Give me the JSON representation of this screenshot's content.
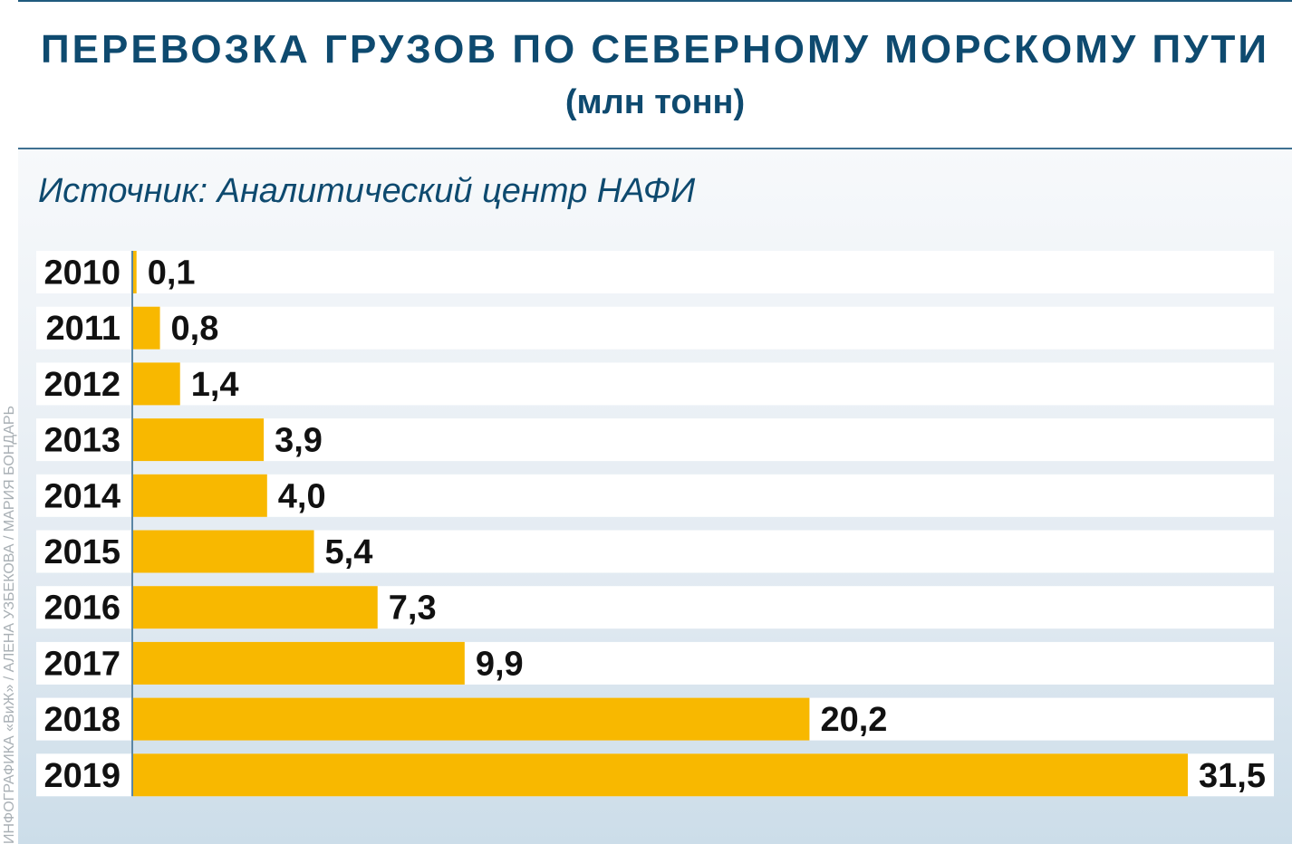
{
  "header": {
    "title": "ПЕРЕВОЗКА ГРУЗОВ ПО СЕВЕРНОМУ МОРСКОМУ ПУТИ",
    "subtitle": "(млн тонн)",
    "source": "Источник: Аналитический центр НАФИ"
  },
  "credit": "ИНФОГРАФИКА «ВиЖ» / АЛЕНА УЗБЕКОВА / МАРИЯ БОНДАРЬ",
  "colors": {
    "bar": "#f8b800",
    "title": "#0e4a6f",
    "axis": "#5a86a5"
  },
  "chart_data": {
    "type": "bar",
    "orientation": "horizontal",
    "title": "ПЕРЕВОЗКА ГРУЗОВ ПО СЕВЕРНОМУ МОРСКОМУ ПУТИ",
    "subtitle": "(млн тонн)",
    "xlabel": "",
    "ylabel": "",
    "categories": [
      "2010",
      "2011",
      "2012",
      "2013",
      "2014",
      "2015",
      "2016",
      "2017",
      "2018",
      "2019"
    ],
    "values": [
      0.1,
      0.8,
      1.4,
      3.9,
      4.0,
      5.4,
      7.3,
      9.9,
      20.2,
      31.5
    ],
    "labels": [
      "0,1",
      "0,8",
      "1,4",
      "3,9",
      "4,0",
      "5,4",
      "7,3",
      "9,9",
      "20,2",
      "31,5"
    ],
    "xlim": [
      0,
      31.5
    ],
    "grid": false
  }
}
